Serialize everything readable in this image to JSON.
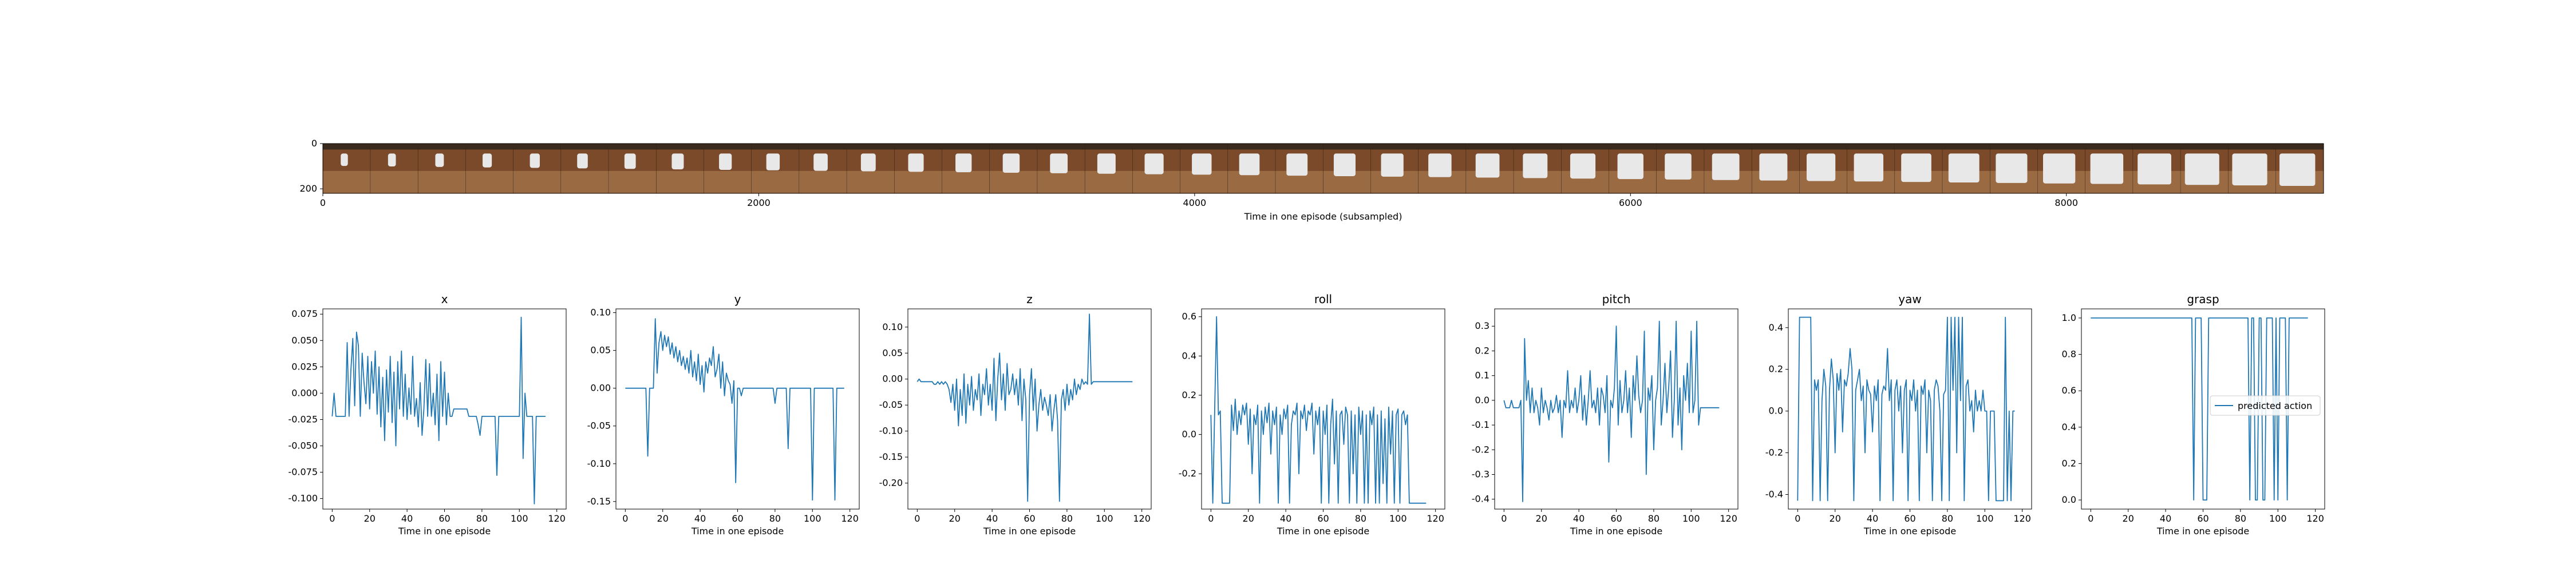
{
  "filmstrip": {
    "xlabel": "Time in one episode (subsampled)",
    "x_ticks": [
      0,
      2000,
      4000,
      6000,
      8000
    ],
    "y_ticks": [
      0,
      200
    ],
    "xlim": [
      0,
      9180
    ],
    "frame_count": 42
  },
  "colors": {
    "series": "#1f77b4",
    "axes": "#000000",
    "table": "#7a4a2a",
    "gripper": "#e8e8e8"
  },
  "chart_data": [
    {
      "type": "line",
      "title": "x",
      "xlabel": "Time in one episode",
      "xlim": [
        -5,
        125
      ],
      "ylim": [
        -0.11,
        0.08
      ],
      "x_ticks": [
        0,
        20,
        40,
        60,
        80,
        100,
        120
      ],
      "y_ticks": [
        -0.1,
        -0.075,
        -0.05,
        -0.025,
        0.0,
        0.025,
        0.05,
        0.075
      ],
      "y_tick_labels": [
        "-0.100",
        "-0.075",
        "-0.050",
        "-0.025",
        "0.000",
        "0.025",
        "0.050",
        "0.075"
      ],
      "values": [
        -0.022,
        0.0,
        -0.022,
        -0.022,
        -0.022,
        -0.022,
        -0.022,
        -0.022,
        0.048,
        -0.022,
        0.022,
        0.052,
        -0.012,
        0.058,
        0.045,
        -0.022,
        0.038,
        0.01,
        -0.01,
        0.035,
        -0.015,
        0.03,
        0.0,
        0.04,
        -0.02,
        0.025,
        -0.032,
        0.015,
        -0.045,
        0.022,
        -0.018,
        0.035,
        -0.028,
        0.02,
        -0.05,
        0.03,
        -0.015,
        0.04,
        -0.022,
        0.018,
        -0.025,
        0.005,
        -0.02,
        0.035,
        -0.022,
        -0.005,
        -0.032,
        0.01,
        -0.04,
        -0.015,
        0.032,
        -0.022,
        0.028,
        -0.022,
        0.0,
        -0.03,
        0.018,
        -0.045,
        0.03,
        -0.022,
        0.02,
        -0.03,
        0.0,
        -0.022,
        -0.022,
        -0.015,
        -0.015,
        -0.015,
        -0.015,
        -0.015,
        -0.015,
        -0.015,
        -0.015,
        -0.022,
        -0.022,
        -0.022,
        -0.022,
        -0.022,
        -0.03,
        -0.04,
        -0.022,
        -0.022,
        -0.022,
        -0.022,
        -0.022,
        -0.022,
        -0.022,
        -0.022,
        -0.078,
        -0.022,
        -0.022,
        -0.022,
        -0.022,
        -0.022,
        -0.022,
        -0.022,
        -0.022,
        -0.022,
        -0.022,
        -0.022,
        -0.022,
        0.072,
        -0.062,
        0.0,
        -0.022,
        -0.022,
        -0.022,
        -0.022,
        -0.105,
        -0.022,
        -0.022,
        -0.022,
        -0.022,
        -0.022,
        -0.022
      ]
    },
    {
      "type": "line",
      "title": "y",
      "xlabel": "Time in one episode",
      "xlim": [
        -5,
        125
      ],
      "ylim": [
        -0.16,
        0.105
      ],
      "x_ticks": [
        0,
        20,
        40,
        60,
        80,
        100,
        120
      ],
      "y_ticks": [
        -0.15,
        -0.1,
        -0.05,
        0.0,
        0.05,
        0.1
      ],
      "y_tick_labels": [
        "-0.15",
        "-0.10",
        "-0.05",
        "0.00",
        "0.05",
        "0.10"
      ],
      "values": [
        0,
        0,
        0,
        0,
        0,
        0,
        0,
        0,
        0,
        0,
        0,
        0,
        -0.09,
        0,
        0.0,
        0,
        0.092,
        0.02,
        0.06,
        0.075,
        0.05,
        0.07,
        0.055,
        0.068,
        0.045,
        0.06,
        0.04,
        0.055,
        0.035,
        0.05,
        0.03,
        0.042,
        0.025,
        0.04,
        0.02,
        0.05,
        0.015,
        0.035,
        0.01,
        0.045,
        0.005,
        0.03,
        -0.005,
        0.035,
        0.02,
        0.04,
        0.03,
        0.055,
        0.015,
        0.025,
        0.045,
        0.0,
        0.035,
        -0.01,
        0.02,
        0.01,
        0.005,
        -0.02,
        0.01,
        -0.125,
        0.0,
        0.0,
        -0.01,
        0.0,
        0.0,
        0.0,
        0.0,
        0.0,
        0.0,
        0.0,
        0.0,
        0.0,
        0.0,
        0.0,
        0.0,
        0.0,
        0.0,
        0.0,
        0.0,
        0.0,
        -0.02,
        0.0,
        0.0,
        0.0,
        0.0,
        0.0,
        0.0,
        -0.08,
        0.0,
        0,
        0,
        0,
        0,
        0,
        0,
        0,
        0,
        0,
        0,
        0,
        -0.148,
        0,
        0,
        0,
        0,
        0,
        0,
        0,
        0,
        0,
        0,
        0,
        -0.148,
        0,
        0,
        0,
        0,
        0
      ]
    },
    {
      "type": "line",
      "title": "z",
      "xlabel": "Time in one episode",
      "xlim": [
        -5,
        125
      ],
      "ylim": [
        -0.25,
        0.135
      ],
      "x_ticks": [
        0,
        20,
        40,
        60,
        80,
        100,
        120
      ],
      "y_ticks": [
        -0.2,
        -0.15,
        -0.1,
        -0.05,
        0.0,
        0.05,
        0.1
      ],
      "y_tick_labels": [
        "-0.20",
        "-0.15",
        "-0.10",
        "-0.05",
        "0.00",
        "0.05",
        "0.10"
      ],
      "values": [
        -0.005,
        0.0,
        -0.005,
        -0.005,
        -0.005,
        -0.005,
        -0.005,
        -0.005,
        -0.005,
        -0.01,
        -0.01,
        -0.005,
        -0.01,
        -0.005,
        -0.01,
        -0.005,
        -0.01,
        -0.02,
        -0.045,
        -0.01,
        -0.06,
        0.0,
        -0.09,
        -0.02,
        -0.07,
        0.01,
        -0.085,
        -0.01,
        -0.05,
        0.005,
        -0.06,
        -0.02,
        -0.04,
        0.01,
        -0.07,
        -0.01,
        -0.03,
        0.02,
        -0.05,
        -0.01,
        -0.06,
        0.04,
        -0.08,
        0.0,
        0.05,
        -0.04,
        0.01,
        -0.06,
        0.03,
        -0.03,
        -0.02,
        0.01,
        -0.03,
        0.0,
        -0.05,
        0.02,
        -0.08,
        0.0,
        -0.04,
        -0.235,
        -0.03,
        0.02,
        -0.06,
        0.0,
        -0.1,
        -0.05,
        -0.02,
        -0.06,
        -0.035,
        -0.05,
        -0.07,
        -0.03,
        -0.1,
        -0.06,
        -0.03,
        -0.08,
        -0.235,
        -0.04,
        -0.02,
        -0.06,
        -0.01,
        -0.05,
        -0.02,
        -0.04,
        0.0,
        -0.03,
        -0.01,
        -0.02,
        0.0,
        -0.01,
        -0.005,
        -0.01,
        0.125,
        -0.01,
        -0.005,
        -0.005,
        -0.005,
        -0.005,
        -0.005,
        -0.005,
        -0.005,
        -0.005,
        -0.005,
        -0.005,
        -0.005,
        -0.005,
        -0.005,
        -0.005,
        -0.005,
        -0.005,
        -0.005,
        -0.005,
        -0.005,
        -0.005,
        -0.005,
        -0.005
      ]
    },
    {
      "type": "line",
      "title": "roll",
      "xlabel": "Time in one episode",
      "xlim": [
        -5,
        125
      ],
      "ylim": [
        -0.38,
        0.64
      ],
      "x_ticks": [
        0,
        20,
        40,
        60,
        80,
        100,
        120
      ],
      "y_ticks": [
        -0.2,
        0.0,
        0.2,
        0.4,
        0.6
      ],
      "y_tick_labels": [
        "-0.2",
        "0.0",
        "0.2",
        "0.4",
        "0.6"
      ],
      "values": [
        0.1,
        -0.35,
        0.12,
        0.6,
        0.1,
        0.12,
        -0.35,
        -0.35,
        -0.35,
        -0.35,
        -0.35,
        0.15,
        0.02,
        0.18,
        0.0,
        0.12,
        0.05,
        0.15,
        0.1,
        0.16,
        -0.05,
        0.13,
        -0.2,
        0.1,
        0.05,
        0.15,
        -0.35,
        0.12,
        0.0,
        0.14,
        0.06,
        0.16,
        -0.1,
        0.12,
        0.05,
        0.14,
        -0.35,
        0.1,
        0.0,
        0.13,
        0.08,
        0.15,
        -0.35,
        0.05,
        0.12,
        0.1,
        0.16,
        -0.2,
        0.12,
        0.08,
        0.15,
        0.02,
        0.12,
        0.1,
        0.16,
        -0.1,
        0.12,
        0.05,
        0.14,
        -0.35,
        0.12,
        0.0,
        0.15,
        -0.35,
        0.05,
        0.18,
        -0.15,
        0.12,
        -0.35,
        0.1,
        0.12,
        -0.05,
        0.14,
        0.1,
        -0.35,
        0.12,
        -0.2,
        0.1,
        -0.35,
        0.14,
        0.0,
        0.12,
        -0.35,
        0.1,
        -0.35,
        0.12,
        0.05,
        0.14,
        -0.35,
        0.1,
        -0.35,
        0.12,
        -0.25,
        0.08,
        -0.35,
        0.14,
        -0.1,
        0.12,
        -0.35,
        0.1,
        0.13,
        -0.35,
        0.1,
        0.12,
        0.05,
        0.1,
        -0.35,
        -0.35,
        -0.35,
        -0.35,
        -0.35,
        -0.35,
        -0.35,
        -0.35,
        -0.35,
        -0.35
      ]
    },
    {
      "type": "line",
      "title": "pitch",
      "xlabel": "Time in one episode",
      "xlim": [
        -5,
        125
      ],
      "ylim": [
        -0.44,
        0.37
      ],
      "x_ticks": [
        0,
        20,
        40,
        60,
        80,
        100,
        120
      ],
      "y_ticks": [
        -0.4,
        -0.3,
        -0.2,
        -0.1,
        0.0,
        0.1,
        0.2,
        0.3
      ],
      "y_tick_labels": [
        "-0.4",
        "-0.3",
        "-0.2",
        "-0.1",
        "0.0",
        "0.1",
        "0.2",
        "0.3"
      ],
      "values": [
        0.0,
        -0.03,
        -0.03,
        -0.03,
        0.0,
        -0.03,
        -0.03,
        -0.03,
        -0.03,
        0.0,
        -0.41,
        0.25,
        0.0,
        0.08,
        -0.05,
        0.05,
        -0.05,
        0.0,
        -0.03,
        -0.1,
        0.05,
        -0.05,
        0.0,
        -0.03,
        -0.08,
        0.0,
        -0.05,
        -0.03,
        0.02,
        -0.05,
        0.0,
        -0.15,
        0.0,
        -0.03,
        0.12,
        -0.05,
        0.0,
        -0.03,
        0.05,
        -0.05,
        0.0,
        0.1,
        -0.08,
        0.02,
        -0.1,
        0.0,
        0.12,
        -0.03,
        0.0,
        -0.05,
        0.05,
        -0.1,
        0.05,
        0.02,
        -0.05,
        0.1,
        -0.25,
        0.0,
        -0.03,
        0.05,
        0.3,
        -0.1,
        0.08,
        -0.05,
        0.0,
        0.12,
        -0.05,
        0.05,
        -0.15,
        0.1,
        0.0,
        0.18,
        0.02,
        -0.05,
        0.0,
        0.28,
        -0.3,
        0.05,
        0.0,
        0.1,
        -0.2,
        0.0,
        0.05,
        0.32,
        -0.1,
        0.0,
        0.15,
        -0.05,
        0.05,
        0.2,
        -0.15,
        0.0,
        0.32,
        -0.1,
        0.05,
        -0.2,
        0.1,
        0.0,
        0.15,
        -0.05,
        0.28,
        -0.05,
        0.0,
        0.32,
        -0.1,
        -0.03,
        -0.03,
        -0.03,
        -0.03,
        -0.03,
        -0.03,
        -0.03,
        -0.03,
        -0.03,
        -0.03,
        -0.03
      ]
    },
    {
      "type": "line",
      "title": "yaw",
      "xlabel": "Time in one episode",
      "xlim": [
        -5,
        125
      ],
      "ylim": [
        -0.47,
        0.49
      ],
      "x_ticks": [
        0,
        20,
        40,
        60,
        80,
        100,
        120
      ],
      "y_ticks": [
        -0.4,
        -0.2,
        0.0,
        0.2,
        0.4
      ],
      "y_tick_labels": [
        "-0.4",
        "-0.2",
        "0.0",
        "0.2",
        "0.4"
      ],
      "values": [
        -0.43,
        0.45,
        0.45,
        0.45,
        0.45,
        0.45,
        0.45,
        0.45,
        -0.43,
        0.15,
        0.1,
        0.15,
        -0.43,
        0.05,
        0.2,
        0.12,
        -0.43,
        0.1,
        0.25,
        0.15,
        -0.2,
        0.18,
        0.1,
        0.2,
        -0.1,
        0.15,
        0.12,
        0.18,
        0.3,
        0.2,
        -0.43,
        0.1,
        0.15,
        0.2,
        0.05,
        0.12,
        -0.2,
        0.15,
        0.1,
        0.08,
        -0.1,
        0.12,
        0.05,
        0.15,
        -0.43,
        0.08,
        0.12,
        0.1,
        0.3,
        0.05,
        0.15,
        -0.43,
        0.1,
        0.15,
        0.0,
        0.12,
        -0.2,
        0.1,
        0.15,
        -0.43,
        0.1,
        0.05,
        0.15,
        0.0,
        0.1,
        -0.43,
        0.12,
        0.08,
        0.15,
        -0.2,
        0.1,
        0.05,
        -0.43,
        0.1,
        0.15,
        0.12,
        0.0,
        -0.43,
        0.08,
        0.1,
        0.45,
        -0.43,
        0.45,
        0.1,
        0.45,
        -0.2,
        0.45,
        0.05,
        0.45,
        -0.43,
        0.12,
        0.15,
        0.0,
        0.05,
        -0.1,
        0.1,
        0.0,
        0.05,
        0.0,
        0.1,
        0.0,
        0.0,
        -0.43,
        0.0,
        0.0,
        0.0,
        -0.43,
        -0.43,
        -0.43,
        -0.43,
        -0.43,
        0.45,
        -0.43,
        0.0,
        -0.43,
        0.0,
        0.0
      ]
    },
    {
      "type": "line",
      "title": "grasp",
      "xlabel": "Time in one episode",
      "xlim": [
        -5,
        125
      ],
      "ylim": [
        -0.05,
        1.05
      ],
      "x_ticks": [
        0,
        20,
        40,
        60,
        80,
        100,
        120
      ],
      "y_ticks": [
        0.0,
        0.2,
        0.4,
        0.6,
        0.8,
        1.0
      ],
      "y_tick_labels": [
        "0.0",
        "0.2",
        "0.4",
        "0.6",
        "0.8",
        "1.0"
      ],
      "legend": "predicted action",
      "legend_position": "right",
      "values": [
        1,
        1,
        1,
        1,
        1,
        1,
        1,
        1,
        1,
        1,
        1,
        1,
        1,
        1,
        1,
        1,
        1,
        1,
        1,
        1,
        1,
        1,
        1,
        1,
        1,
        1,
        1,
        1,
        1,
        1,
        1,
        1,
        1,
        1,
        1,
        1,
        1,
        1,
        1,
        1,
        1,
        1,
        1,
        1,
        1,
        1,
        1,
        1,
        1,
        1,
        1,
        1,
        1,
        1,
        1,
        0,
        1,
        1,
        1,
        1,
        0,
        0,
        0,
        1,
        1,
        1,
        1,
        1,
        1,
        1,
        1,
        1,
        1,
        1,
        1,
        1,
        1,
        1,
        1,
        1,
        1,
        1,
        1,
        1,
        1,
        0,
        1,
        1,
        0,
        0,
        1,
        1,
        0,
        0,
        1,
        1,
        1,
        1,
        0,
        1,
        0,
        1,
        1,
        1,
        1,
        0,
        1,
        1,
        1,
        1,
        1,
        1,
        1,
        1,
        1,
        1,
        1
      ]
    }
  ]
}
